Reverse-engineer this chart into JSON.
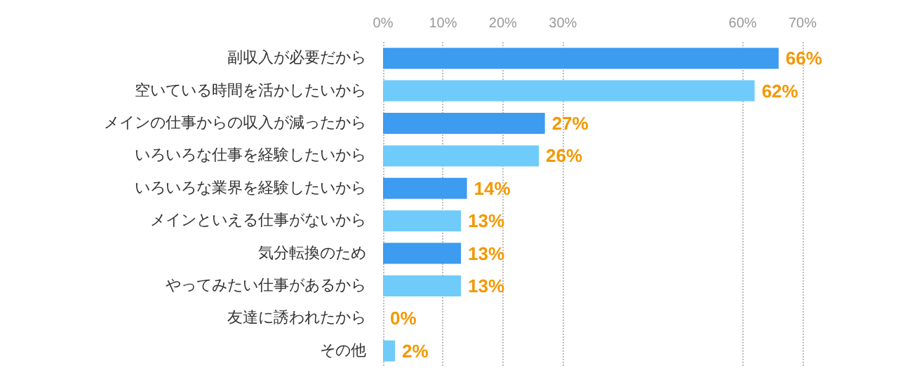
{
  "chart_data": {
    "type": "bar",
    "orientation": "horizontal",
    "categories": [
      "副収入が必要だから",
      "空いている時間を活かしたいから",
      "メインの仕事からの収入が減ったから",
      "いろいろな仕事を経験したいから",
      "いろいろな業界を経験したいから",
      "メインといえる仕事がないから",
      "気分転換のため",
      "やってみたい仕事があるから",
      "友達に誘われたから",
      "その他"
    ],
    "values": [
      66,
      62,
      27,
      26,
      14,
      13,
      13,
      13,
      0,
      2
    ],
    "colors": [
      "#3d9bf0",
      "#6fcbfa",
      "#3d9bf0",
      "#6fcbfa",
      "#3d9bf0",
      "#6fcbfa",
      "#3d9bf0",
      "#6fcbfa",
      "#3d9bf0",
      "#6fcbfa"
    ],
    "value_labels": [
      "66%",
      "62%",
      "27%",
      "26%",
      "14%",
      "13%",
      "13%",
      "13%",
      "0%",
      "2%"
    ],
    "xlim": [
      0,
      70
    ],
    "xticks": [
      {
        "value": 0,
        "label": "0%"
      },
      {
        "value": 10,
        "label": "10%"
      },
      {
        "value": 20,
        "label": "20%"
      },
      {
        "value": 30,
        "label": "30%"
      },
      {
        "value": 60,
        "label": "60%"
      },
      {
        "value": 70,
        "label": "70%"
      }
    ],
    "grid": "x"
  }
}
